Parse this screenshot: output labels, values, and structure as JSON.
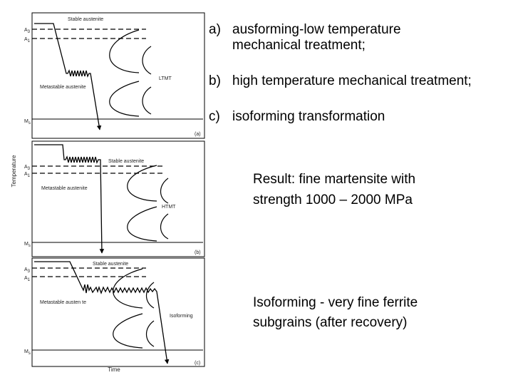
{
  "axis": {
    "y_label": "Temperature",
    "x_label": "Time"
  },
  "symbols": {
    "a3": "A",
    "a1": "A",
    "ms": "M",
    "sub3": "3",
    "sub1": "1",
    "subs": "s"
  },
  "panels": [
    {
      "tag": "(a)",
      "top_label": "Stable austenite",
      "meta_label": "Metastable austenite",
      "process_label": "LTMT"
    },
    {
      "tag": "(b)",
      "top_label": "Stable austenite",
      "meta_label": "Metastable austenite",
      "process_label": "HTMT"
    },
    {
      "tag": "(c)",
      "top_label": "Stable austenite",
      "meta_label": "Metastable austen te",
      "process_label": "Isoforming"
    }
  ],
  "list": [
    {
      "letter": "a)",
      "line1": "ausforming-low temperature",
      "line2": "mechanical treatment;"
    },
    {
      "letter": "b)",
      "line1": "high temperature mechanical treatment;"
    },
    {
      "letter": "c)",
      "line1": "isoforming transformation"
    }
  ],
  "result": {
    "line1": "Result: fine martensite with",
    "line2": "strength 1000 – 2000 MPa"
  },
  "isoforming": {
    "line1": "Isoforming  - very fine ferrite",
    "line2": "subgrains (after recovery)"
  }
}
